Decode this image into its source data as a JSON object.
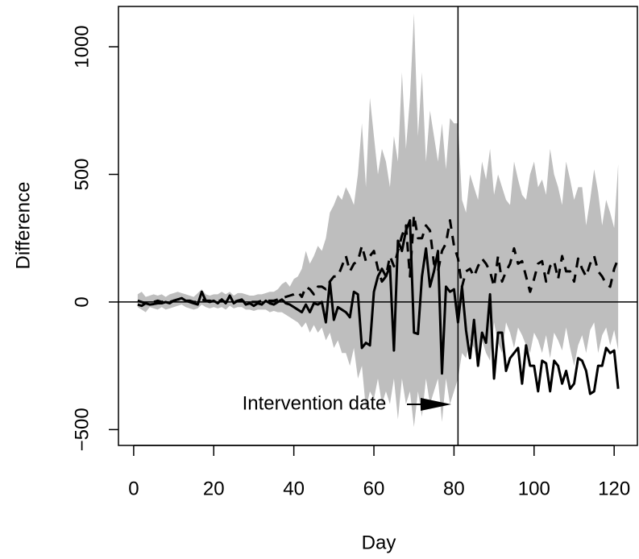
{
  "chart_data": {
    "type": "line",
    "x_label": "Day",
    "y_label": "Difference",
    "annotation": "Intervention date",
    "x": [
      1,
      2,
      3,
      4,
      5,
      6,
      7,
      8,
      9,
      10,
      11,
      12,
      13,
      14,
      15,
      16,
      17,
      18,
      19,
      20,
      21,
      22,
      23,
      24,
      25,
      26,
      27,
      28,
      29,
      30,
      31,
      32,
      33,
      34,
      35,
      36,
      37,
      38,
      39,
      40,
      41,
      42,
      43,
      44,
      45,
      46,
      47,
      48,
      49,
      50,
      51,
      52,
      53,
      54,
      55,
      56,
      57,
      58,
      59,
      60,
      61,
      62,
      63,
      64,
      65,
      66,
      67,
      68,
      69,
      70,
      71,
      72,
      73,
      74,
      75,
      76,
      77,
      78,
      79,
      80,
      81,
      82,
      83,
      84,
      85,
      86,
      87,
      88,
      89,
      90,
      91,
      92,
      93,
      94,
      95,
      96,
      97,
      98,
      99,
      100,
      101,
      102,
      103,
      104,
      105,
      106,
      107,
      108,
      109,
      110,
      111,
      112,
      113,
      114,
      115,
      116,
      117,
      118,
      119,
      120,
      121
    ],
    "band": {
      "color": "#bebebe",
      "upper": [
        30,
        40,
        20,
        25,
        30,
        25,
        30,
        20,
        30,
        35,
        40,
        35,
        30,
        25,
        20,
        35,
        50,
        30,
        25,
        30,
        30,
        40,
        30,
        40,
        25,
        35,
        35,
        30,
        25,
        25,
        30,
        30,
        35,
        40,
        40,
        50,
        70,
        80,
        60,
        90,
        100,
        130,
        200,
        150,
        180,
        220,
        200,
        250,
        350,
        380,
        420,
        400,
        450,
        420,
        380,
        500,
        700,
        450,
        800,
        650,
        500,
        600,
        550,
        450,
        650,
        550,
        900,
        600,
        800,
        1130,
        650,
        900,
        550,
        750,
        650,
        550,
        700,
        520,
        720,
        700,
        700,
        400,
        350,
        500,
        450,
        400,
        550,
        480,
        600,
        420,
        500,
        450,
        400,
        380,
        550,
        480,
        420,
        400,
        500,
        550,
        450,
        480,
        420,
        600,
        500,
        450,
        380,
        550,
        480,
        400,
        450,
        450,
        300,
        400,
        520,
        430,
        300,
        400,
        350,
        290,
        540
      ],
      "lower": [
        -20,
        -30,
        -40,
        -20,
        -25,
        -30,
        -20,
        -30,
        -25,
        -20,
        -15,
        -10,
        -20,
        -25,
        -30,
        -25,
        -10,
        -20,
        -25,
        -20,
        -25,
        -20,
        -30,
        -15,
        -25,
        -20,
        -20,
        -30,
        -30,
        -35,
        -30,
        -30,
        -30,
        -40,
        -35,
        -40,
        -40,
        -50,
        -60,
        -70,
        -80,
        -100,
        -80,
        -120,
        -90,
        -120,
        -100,
        -150,
        -120,
        -180,
        -150,
        -200,
        -200,
        -250,
        -180,
        -300,
        -250,
        -420,
        -350,
        -380,
        -300,
        -400,
        -350,
        -400,
        -300,
        -460,
        -300,
        -400,
        -350,
        -490,
        -350,
        -450,
        -300,
        -400,
        -350,
        -300,
        -470,
        -300,
        -400,
        -350,
        -300,
        -200,
        -220,
        -150,
        -180,
        -250,
        -150,
        -200,
        -230,
        -80,
        -160,
        -200,
        -80,
        -120,
        -180,
        -100,
        -130,
        -170,
        -200,
        -120,
        -150,
        -200,
        -130,
        -220,
        -120,
        -150,
        -190,
        -100,
        -180,
        -250,
        -170,
        -130,
        -200,
        -110,
        -80,
        -200,
        -130,
        -100,
        -170,
        -110,
        -190
      ]
    },
    "series": [
      {
        "color": "#000000",
        "dashed": true,
        "values": [
          5,
          0,
          -5,
          0,
          0,
          5,
          0,
          5,
          0,
          5,
          10,
          10,
          5,
          5,
          0,
          0,
          10,
          5,
          5,
          0,
          5,
          5,
          0,
          5,
          0,
          5,
          5,
          0,
          0,
          0,
          0,
          5,
          5,
          5,
          5,
          10,
          15,
          20,
          25,
          30,
          40,
          20,
          60,
          50,
          30,
          60,
          60,
          50,
          80,
          100,
          100,
          140,
          180,
          120,
          150,
          160,
          220,
          160,
          180,
          200,
          130,
          80,
          100,
          180,
          140,
          200,
          260,
          300,
          100,
          340,
          250,
          250,
          300,
          280,
          150,
          120,
          200,
          230,
          320,
          220,
          170,
          60,
          120,
          130,
          100,
          140,
          170,
          150,
          120,
          60,
          180,
          80,
          120,
          150,
          210,
          150,
          160,
          100,
          40,
          90,
          150,
          160,
          80,
          140,
          160,
          90,
          180,
          120,
          120,
          80,
          170,
          130,
          100,
          150,
          180,
          120,
          100,
          70,
          60,
          130,
          170
        ]
      },
      {
        "color": "#000000",
        "dashed": false,
        "values": [
          -10,
          -15,
          -5,
          -10,
          -8,
          -5,
          -5,
          0,
          -5,
          5,
          10,
          15,
          5,
          0,
          -5,
          -10,
          40,
          5,
          0,
          5,
          -5,
          10,
          -5,
          25,
          -5,
          5,
          10,
          -10,
          -5,
          -15,
          -5,
          -10,
          5,
          -5,
          -10,
          0,
          10,
          -5,
          -10,
          -20,
          -30,
          -40,
          -10,
          -40,
          -5,
          -10,
          0,
          -80,
          80,
          -70,
          -20,
          -30,
          -40,
          -60,
          40,
          30,
          -180,
          -160,
          -170,
          40,
          100,
          130,
          100,
          140,
          -190,
          240,
          200,
          280,
          320,
          -120,
          -125,
          100,
          210,
          60,
          120,
          200,
          -280,
          60,
          40,
          50,
          -80,
          60,
          -110,
          -220,
          -70,
          -250,
          -120,
          -160,
          30,
          -300,
          -120,
          -120,
          -270,
          -220,
          -200,
          -180,
          -320,
          -170,
          -250,
          -250,
          -350,
          -230,
          -240,
          -350,
          -230,
          -250,
          -320,
          -270,
          -340,
          -320,
          -220,
          -230,
          -270,
          -360,
          -350,
          -250,
          -250,
          -180,
          -200,
          -190,
          -340
        ]
      }
    ],
    "vline": 81,
    "hline": 0,
    "xlim": [
      -3.8,
      125.8
    ],
    "ylim": [
      -562,
      1158
    ],
    "xticks": [
      0,
      20,
      40,
      60,
      80,
      100,
      120
    ],
    "yticks": [
      {
        "value": -500,
        "label": "−500"
      },
      0,
      500,
      1000
    ]
  }
}
